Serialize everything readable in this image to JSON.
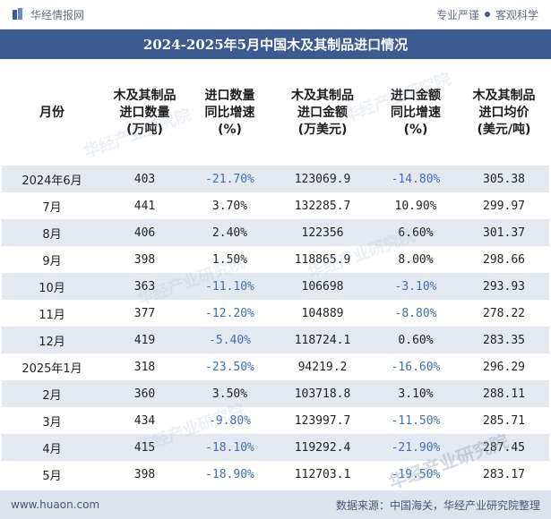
{
  "header": {
    "brand": "华经情报网",
    "slogan_left": "专业严谨",
    "slogan_right": "客观科学"
  },
  "title": "2024-2025年5月中国木及其制品进口情况",
  "table": {
    "columns": [
      [
        "月份"
      ],
      [
        "木及其制品",
        "进口数量",
        "(万吨)"
      ],
      [
        "进口数量",
        "同比增速",
        "(%)"
      ],
      [
        "木及其制品",
        "进口金额",
        "(万美元)"
      ],
      [
        "进口金额",
        "同比增速",
        "(%)"
      ],
      [
        "木及其制品",
        "进口均价",
        "(美元/吨)"
      ]
    ],
    "rows": [
      [
        "2024年6月",
        "403",
        "-21.70%",
        "123069.9",
        "-14.80%",
        "305.38"
      ],
      [
        "7月",
        "441",
        "3.70%",
        "132285.7",
        "10.90%",
        "299.97"
      ],
      [
        "8月",
        "406",
        "2.40%",
        "122356",
        "6.60%",
        "301.37"
      ],
      [
        "9月",
        "398",
        "1.50%",
        "118865.9",
        "8.00%",
        "298.66"
      ],
      [
        "10月",
        "363",
        "-11.10%",
        "106698",
        "-3.10%",
        "293.93"
      ],
      [
        "11月",
        "377",
        "-12.20%",
        "104889",
        "-8.80%",
        "278.22"
      ],
      [
        "12月",
        "419",
        "-5.40%",
        "118724.1",
        "0.60%",
        "283.35"
      ],
      [
        "2025年1月",
        "318",
        "-23.50%",
        "94219.2",
        "-16.60%",
        "296.29"
      ],
      [
        "2月",
        "360",
        "3.50%",
        "103718.8",
        "3.10%",
        "288.11"
      ],
      [
        "3月",
        "434",
        "-9.80%",
        "123997.7",
        "-11.50%",
        "285.71"
      ],
      [
        "4月",
        "415",
        "-18.10%",
        "119292.4",
        "-21.90%",
        "287.45"
      ],
      [
        "5月",
        "398",
        "-18.90%",
        "112703.1",
        "-19.50%",
        "283.17"
      ]
    ]
  },
  "watermark": "华经产业研究院",
  "footer": {
    "url": "www.huaon.com",
    "source": "数据来源：中国海关，华经产业研究院整理"
  },
  "colors": {
    "title_bg": "#3b5b92",
    "stripe": "#e4e9f1",
    "negative_text": "#3e6fb3",
    "footer_bg": "#dde3ec"
  }
}
